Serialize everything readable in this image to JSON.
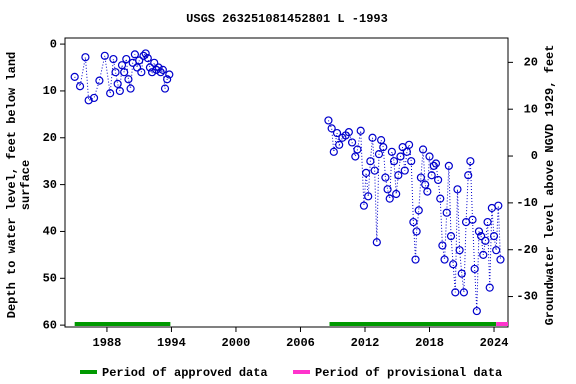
{
  "chart_data": {
    "type": "scatter",
    "title": "USGS 263251081452801 L  -1993",
    "y_label": [
      "Depth to water level, feet below land",
      "surface"
    ],
    "y2_label": "Groundwater level above NGVD 1929, feet",
    "xlim": [
      1984.1,
      2025.3
    ],
    "xticks": [
      1988,
      1994,
      2000,
      2006,
      2012,
      2018,
      2024
    ],
    "ylim": [
      60.4,
      -1.3
    ],
    "yticks": [
      0,
      10,
      20,
      30,
      40,
      50,
      60
    ],
    "y2lim": [
      -36.5,
      25.2
    ],
    "y2ticks": [
      20,
      10,
      0,
      -10,
      -20,
      -30
    ],
    "x": [
      1985.0,
      1985.5,
      1986.0,
      1986.3,
      1986.8,
      1987.3,
      1987.8,
      1988.3,
      1988.6,
      1988.8,
      1989.0,
      1989.2,
      1989.4,
      1989.6,
      1989.8,
      1990.0,
      1990.2,
      1990.4,
      1990.6,
      1990.8,
      1991.0,
      1991.2,
      1991.4,
      1991.6,
      1991.8,
      1992.0,
      1992.2,
      1992.4,
      1992.6,
      1992.8,
      1993.0,
      1993.2,
      1993.4,
      1993.6,
      1993.8,
      2001.0,
      2008.6,
      2008.9,
      2009.1,
      2009.4,
      2009.6,
      2009.9,
      2010.2,
      2010.5,
      2010.8,
      2011.1,
      2011.3,
      2011.6,
      2011.9,
      2012.1,
      2012.3,
      2012.5,
      2012.7,
      2012.9,
      2013.1,
      2013.3,
      2013.5,
      2013.7,
      2013.9,
      2014.1,
      2014.3,
      2014.5,
      2014.7,
      2014.9,
      2015.1,
      2015.3,
      2015.5,
      2015.7,
      2015.9,
      2016.1,
      2016.3,
      2016.5,
      2016.7,
      2016.8,
      2017.0,
      2017.2,
      2017.4,
      2017.6,
      2017.8,
      2018.0,
      2018.2,
      2018.4,
      2018.6,
      2018.8,
      2019.0,
      2019.2,
      2019.4,
      2019.6,
      2019.8,
      2020.0,
      2020.2,
      2020.4,
      2020.6,
      2020.8,
      2021.0,
      2021.2,
      2021.4,
      2021.6,
      2021.8,
      2022.0,
      2022.2,
      2022.4,
      2022.6,
      2022.8,
      2023.0,
      2023.2,
      2023.4,
      2023.6,
      2023.8,
      2024.0,
      2024.2,
      2024.4,
      2024.6
    ],
    "series": [
      {
        "color": "#0000cc",
        "values": [
          7,
          9,
          2.8,
          12,
          11.5,
          7.8,
          2.5,
          10.5,
          3.2,
          6,
          8.5,
          10,
          4.5,
          6,
          3.2,
          7.5,
          9.5,
          4,
          2.2,
          5,
          3.5,
          6,
          2.5,
          2,
          3,
          5,
          6,
          4,
          5.5,
          5,
          6,
          5.5,
          9.5,
          7.5,
          6.5,
          null,
          16.3,
          18,
          23,
          19,
          21.5,
          20,
          19.5,
          18.8,
          21,
          24,
          22.5,
          18.5,
          34.5,
          27.5,
          32.5,
          25,
          20,
          27,
          42.3,
          23.5,
          20.5,
          22,
          28.5,
          31,
          33,
          23,
          25,
          32,
          28,
          24,
          22,
          27,
          23,
          21.5,
          25,
          38,
          46,
          40,
          35.5,
          28.5,
          22.5,
          30,
          31.5,
          24,
          28,
          26,
          25.5,
          29,
          33,
          43,
          46,
          36,
          26,
          41,
          47,
          53,
          31,
          44,
          49,
          53,
          38,
          28,
          25,
          37.5,
          48,
          57,
          40,
          41,
          45,
          42,
          38,
          52,
          35,
          41,
          44,
          34.5,
          46
        ]
      }
    ],
    "periods": [
      {
        "name": "Period of approved data",
        "color": "#009900",
        "ranges": [
          [
            1985.0,
            1993.9
          ],
          [
            2008.7,
            2024.2
          ]
        ]
      },
      {
        "name": "Period of provisional data",
        "color": "#ff33cc",
        "ranges": [
          [
            2024.2,
            2025.3
          ]
        ]
      }
    ]
  }
}
